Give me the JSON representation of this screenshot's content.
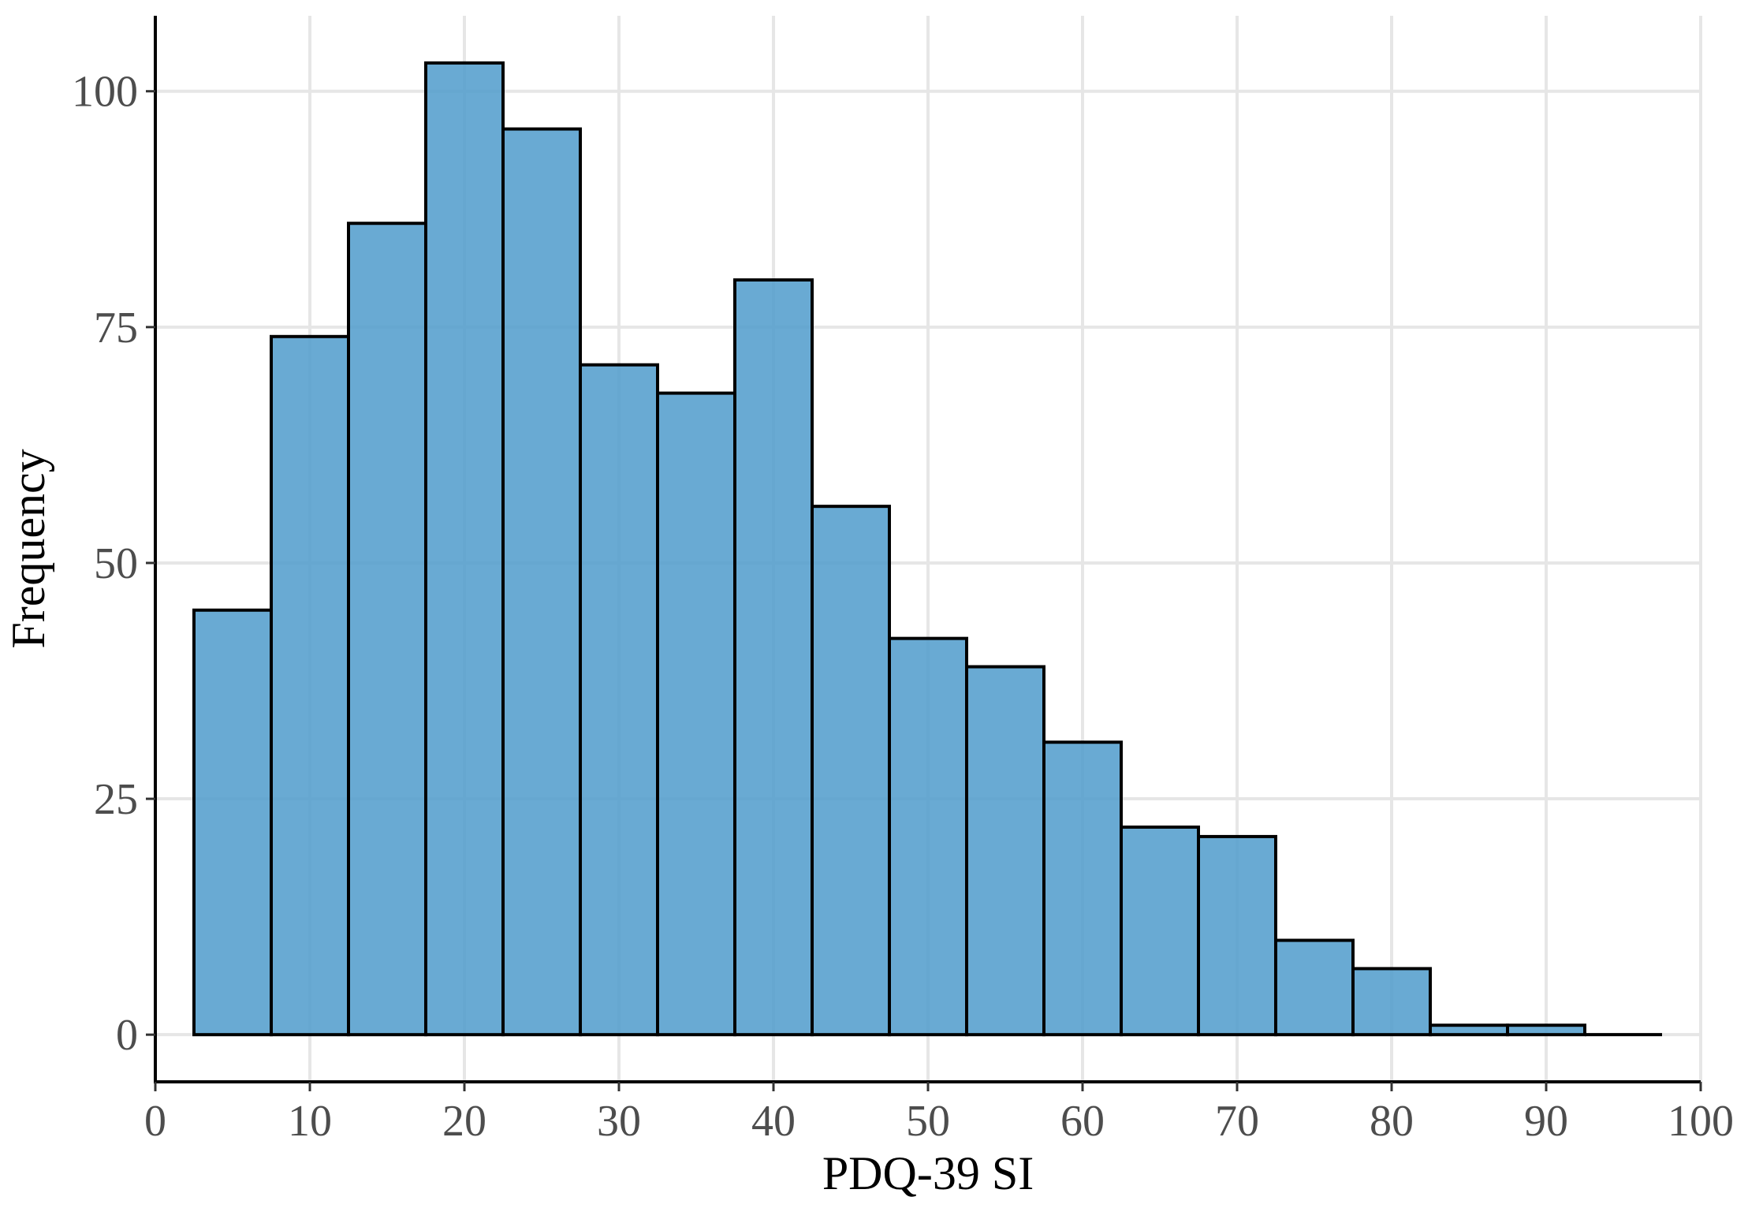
{
  "chart_data": {
    "type": "bar",
    "subtype": "histogram",
    "xlabel": "PDQ-39 SI",
    "ylabel": "Frequency",
    "xlim": [
      0,
      100
    ],
    "ylim": [
      -5,
      108
    ],
    "xticks": [
      0,
      10,
      20,
      30,
      40,
      50,
      60,
      70,
      80,
      90,
      100
    ],
    "yticks": [
      0,
      25,
      50,
      75,
      100
    ],
    "bin_width": 5,
    "bins": [
      {
        "start": 2.5,
        "end": 7.5,
        "count": 45
      },
      {
        "start": 7.5,
        "end": 12.5,
        "count": 74
      },
      {
        "start": 12.5,
        "end": 17.5,
        "count": 86
      },
      {
        "start": 17.5,
        "end": 22.5,
        "count": 103
      },
      {
        "start": 22.5,
        "end": 27.5,
        "count": 96
      },
      {
        "start": 27.5,
        "end": 32.5,
        "count": 71
      },
      {
        "start": 32.5,
        "end": 37.5,
        "count": 68
      },
      {
        "start": 37.5,
        "end": 42.5,
        "count": 80
      },
      {
        "start": 42.5,
        "end": 47.5,
        "count": 56
      },
      {
        "start": 47.5,
        "end": 52.5,
        "count": 42
      },
      {
        "start": 52.5,
        "end": 57.5,
        "count": 39
      },
      {
        "start": 57.5,
        "end": 62.5,
        "count": 31
      },
      {
        "start": 62.5,
        "end": 67.5,
        "count": 22
      },
      {
        "start": 67.5,
        "end": 72.5,
        "count": 21
      },
      {
        "start": 72.5,
        "end": 77.5,
        "count": 10
      },
      {
        "start": 77.5,
        "end": 82.5,
        "count": 7
      },
      {
        "start": 82.5,
        "end": 87.5,
        "count": 1
      },
      {
        "start": 87.5,
        "end": 92.5,
        "count": 1
      },
      {
        "start": 92.5,
        "end": 97.5,
        "count": 0
      }
    ],
    "bar_color": "#4f9bcb",
    "bar_edge_color": "#000000",
    "grid": true
  }
}
